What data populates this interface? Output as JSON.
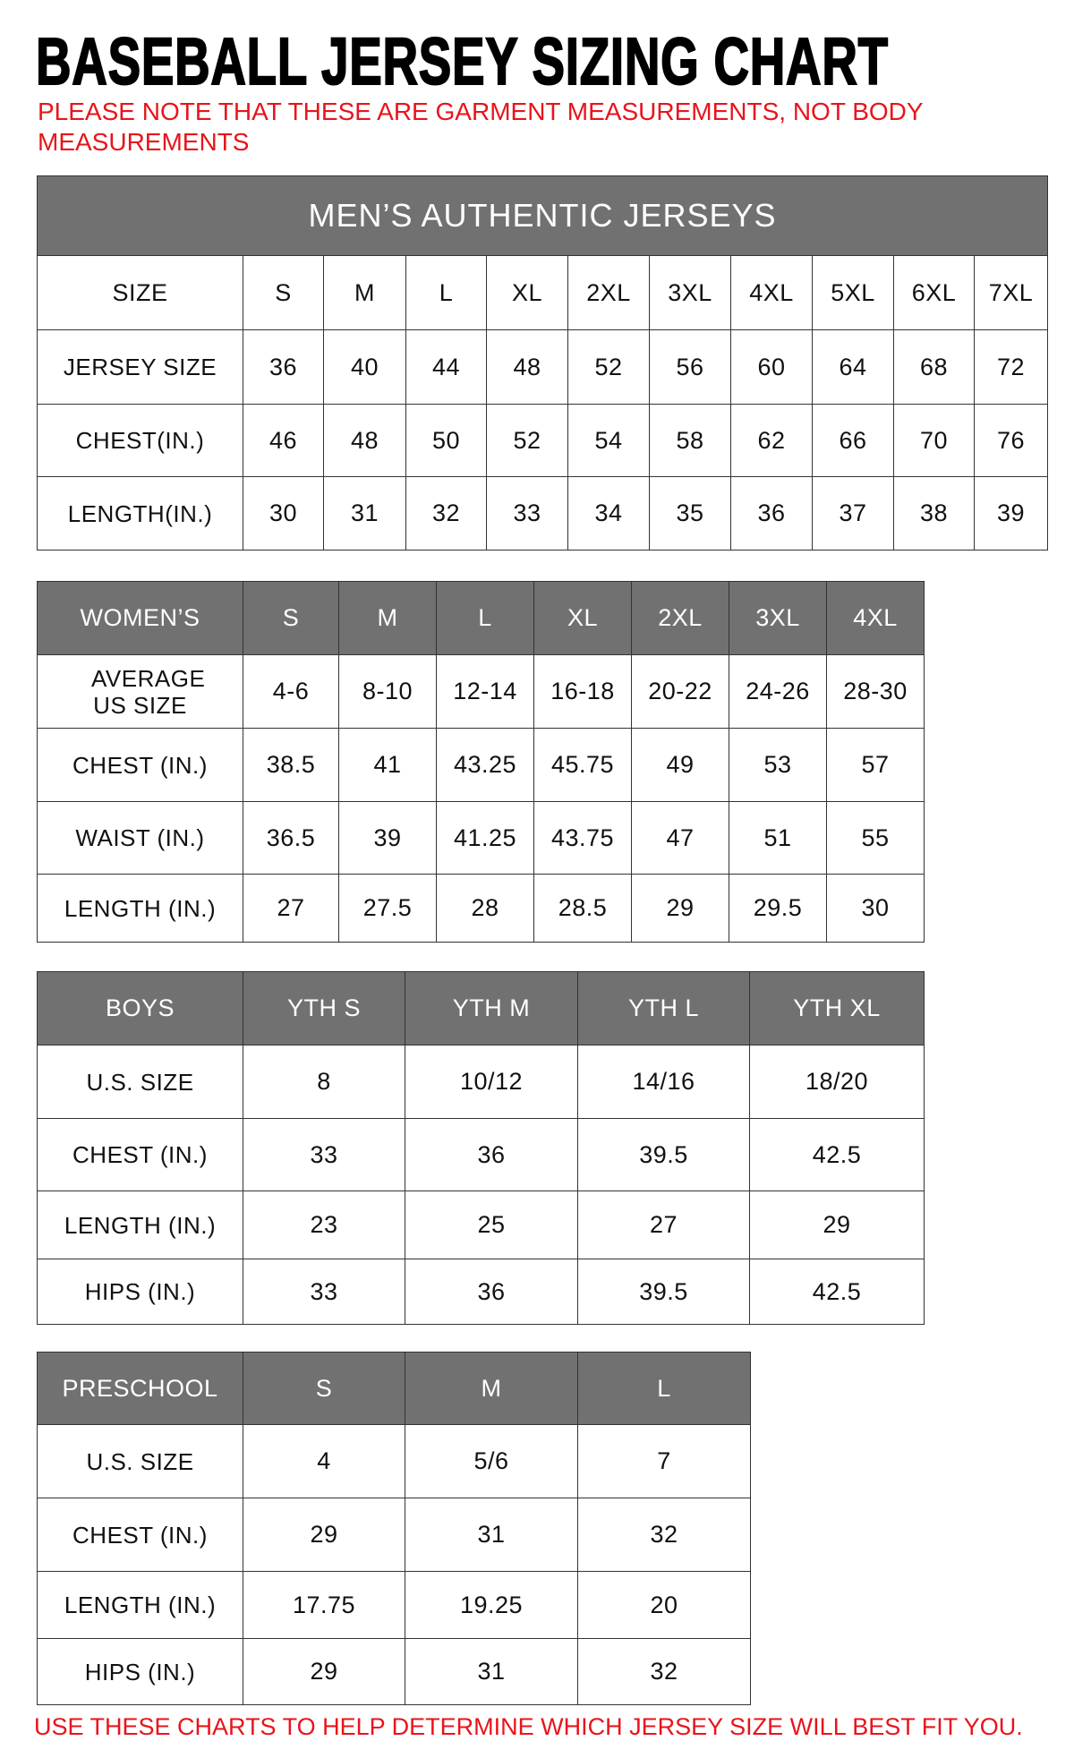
{
  "title": "BASEBALL JERSEY SIZING CHART",
  "note": "PLEASE NOTE THAT THESE ARE GARMENT MEASUREMENTS, NOT BODY MEASUREMENTS",
  "footer": "USE THESE CHARTS TO HELP DETERMINE WHICH JERSEY SIZE WILL BEST FIT YOU.",
  "colors": {
    "header_gray": "#717171",
    "note_red": "#e8141b"
  },
  "tables": [
    {
      "id": "mens",
      "band": "MEN’S AUTHENTIC JERSEYS",
      "header": [
        "SIZE",
        "S",
        "M",
        "L",
        "XL",
        "2XL",
        "3XL",
        "4XL",
        "5XL",
        "6XL",
        "7XL"
      ],
      "header_gray": false,
      "rows": [
        [
          "JERSEY SIZE",
          "36",
          "40",
          "44",
          "48",
          "52",
          "56",
          "60",
          "64",
          "68",
          "72"
        ],
        [
          "CHEST(IN.)",
          "46",
          "48",
          "50",
          "52",
          "54",
          "58",
          "62",
          "66",
          "70",
          "76"
        ],
        [
          "LENGTH(IN.)",
          "30",
          "31",
          "32",
          "33",
          "34",
          "35",
          "36",
          "37",
          "38",
          "39"
        ]
      ]
    },
    {
      "id": "womens",
      "header": [
        "WOMEN’S",
        "S",
        "M",
        "L",
        "XL",
        "2XL",
        "3XL",
        "4XL"
      ],
      "header_gray": true,
      "rows": [
        [
          "AVERAGE US SIZE",
          "4-6",
          "8-10",
          "12-14",
          "16-18",
          "20-22",
          "24-26",
          "28-30"
        ],
        [
          "CHEST (IN.)",
          "38.5",
          "41",
          "43.25",
          "45.75",
          "49",
          "53",
          "57"
        ],
        [
          "WAIST (IN.)",
          "36.5",
          "39",
          "41.25",
          "43.75",
          "47",
          "51",
          "55"
        ],
        [
          "LENGTH (IN.)",
          "27",
          "27.5",
          "28",
          "28.5",
          "29",
          "29.5",
          "30"
        ]
      ]
    },
    {
      "id": "boys",
      "header": [
        "BOYS",
        "YTH S",
        "YTH M",
        "YTH L",
        "YTH XL"
      ],
      "header_gray": true,
      "rows": [
        [
          "U.S. SIZE",
          "8",
          "10/12",
          "14/16",
          "18/20"
        ],
        [
          "CHEST (IN.)",
          "33",
          "36",
          "39.5",
          "42.5"
        ],
        [
          "LENGTH (IN.)",
          "23",
          "25",
          "27",
          "29"
        ],
        [
          "HIPS (IN.)",
          "33",
          "36",
          "39.5",
          "42.5"
        ]
      ]
    },
    {
      "id": "preschool",
      "header": [
        "PRESCHOOL",
        "S",
        "M",
        "L"
      ],
      "header_gray": true,
      "rows": [
        [
          "U.S. SIZE",
          "4",
          "5/6",
          "7"
        ],
        [
          "CHEST (IN.)",
          "29",
          "31",
          "32"
        ],
        [
          "LENGTH (IN.)",
          "17.75",
          "19.25",
          "20"
        ],
        [
          "HIPS (IN.)",
          "29",
          "31",
          "32"
        ]
      ]
    }
  ]
}
